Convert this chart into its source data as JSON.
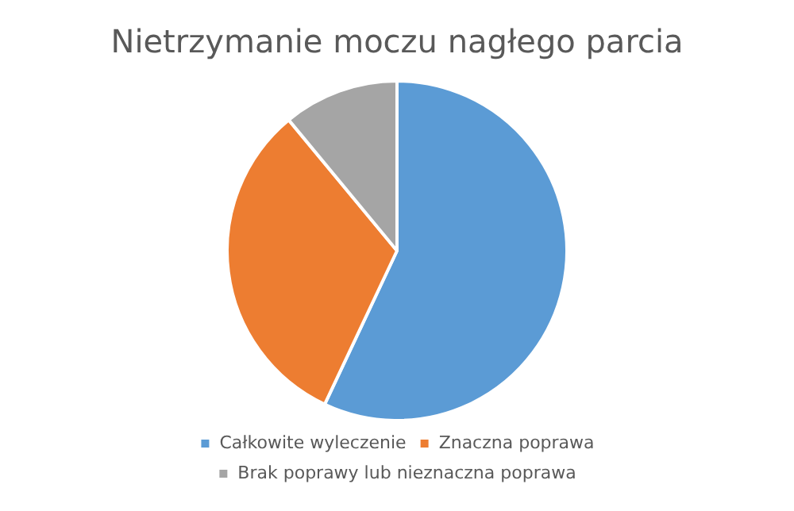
{
  "chart_data": {
    "type": "pie",
    "title": "Nietrzymanie moczu nagłego parcia",
    "categories": [
      "Całkowite wyleczenie",
      "Znaczna poprawa",
      "Brak poprawy lub nieznaczna poprawa"
    ],
    "values": [
      57,
      32,
      11
    ],
    "colors": [
      "#5b9bd5",
      "#ed7d31",
      "#a5a5a5"
    ],
    "legend": "bottom"
  }
}
